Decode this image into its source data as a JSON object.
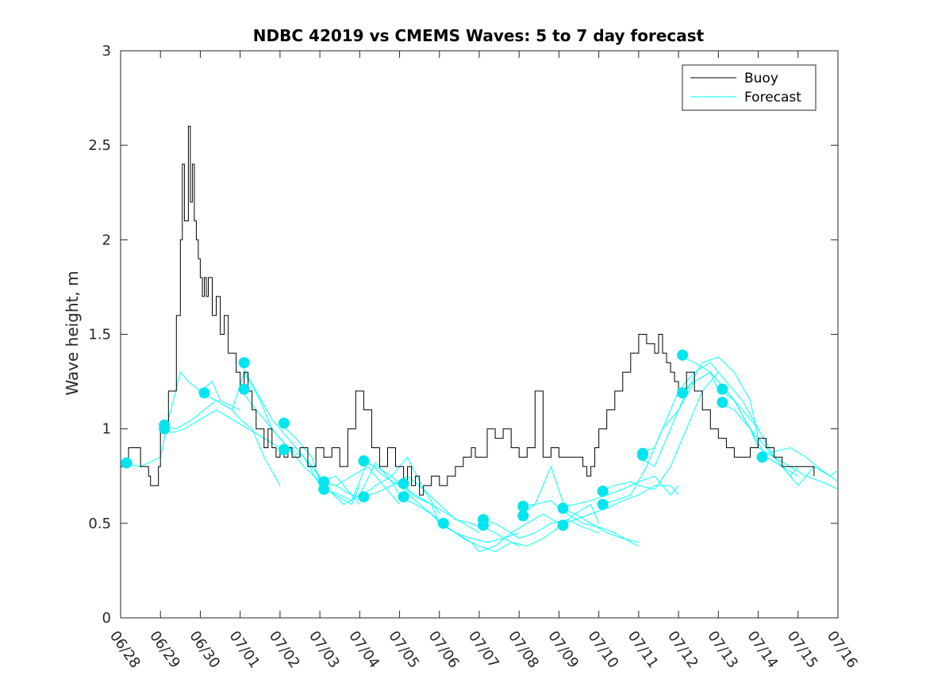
{
  "chart_data": {
    "type": "line",
    "title": "NDBC 42019 vs CMEMS Waves: 5 to 7 day forecast",
    "xlabel": "",
    "ylabel": "Wave height, m",
    "xlim": [
      0,
      18
    ],
    "ylim": [
      0,
      3
    ],
    "x_unit": "days since 06/28",
    "x_ticks": [
      0,
      1,
      2,
      3,
      4,
      5,
      6,
      7,
      8,
      9,
      10,
      11,
      12,
      13,
      14,
      15,
      16,
      17,
      18
    ],
    "x_tick_labels": [
      "06/28",
      "06/29",
      "06/30",
      "07/01",
      "07/02",
      "07/03",
      "07/04",
      "07/05",
      "07/06",
      "07/07",
      "07/08",
      "07/09",
      "07/10",
      "07/11",
      "07/12",
      "07/13",
      "07/14",
      "07/15",
      "07/16"
    ],
    "y_ticks": [
      0,
      0.5,
      1,
      1.5,
      2,
      2.5,
      3
    ],
    "y_tick_labels": [
      "0",
      "0.5",
      "1",
      "1.5",
      "2",
      "2.5",
      "3"
    ],
    "legend": {
      "position": "top-right",
      "entries": [
        "Buoy",
        "Forecast"
      ]
    },
    "colors": {
      "buoy": "#000000",
      "forecast": "#00ffff",
      "markers": "#00e5ee",
      "axes": "#262626"
    },
    "series": [
      {
        "name": "Buoy",
        "x": [
          0,
          0.2,
          0.5,
          0.7,
          0.75,
          0.95,
          1.0,
          1.2,
          1.4,
          1.5,
          1.55,
          1.6,
          1.7,
          1.75,
          1.8,
          1.85,
          1.9,
          1.95,
          2.0,
          2.05,
          2.1,
          2.15,
          2.2,
          2.3,
          2.4,
          2.5,
          2.6,
          2.7,
          2.8,
          2.9,
          3.0,
          3.1,
          3.2,
          3.3,
          3.4,
          3.5,
          3.6,
          3.7,
          3.8,
          3.9,
          4.0,
          4.1,
          4.2,
          4.3,
          4.5,
          4.7,
          4.9,
          5.1,
          5.3,
          5.5,
          5.7,
          5.9,
          6.1,
          6.3,
          6.5,
          6.7,
          6.9,
          7.1,
          7.2,
          7.3,
          7.4,
          7.5,
          7.6,
          7.8,
          8.0,
          8.2,
          8.4,
          8.6,
          8.8,
          8.9,
          9.0,
          9.2,
          9.4,
          9.6,
          9.8,
          10.0,
          10.2,
          10.4,
          10.6,
          10.8,
          11.0,
          11.3,
          11.6,
          11.7,
          11.8,
          11.9,
          12.0,
          12.2,
          12.4,
          12.6,
          12.8,
          13.0,
          13.2,
          13.4,
          13.5,
          13.6,
          13.7,
          13.8,
          13.9,
          14.0,
          14.2,
          14.4,
          14.6,
          14.8,
          15.0,
          15.2,
          15.4,
          15.6,
          15.8,
          16.0,
          16.2,
          16.4,
          16.6,
          16.8,
          17.0,
          17.2,
          17.4
        ],
        "y": [
          0.8,
          0.9,
          0.8,
          0.75,
          0.7,
          0.8,
          1.0,
          1.2,
          1.6,
          2.0,
          2.4,
          2.1,
          2.6,
          2.2,
          2.4,
          2.1,
          2.0,
          1.9,
          1.8,
          1.7,
          1.8,
          1.7,
          1.8,
          1.6,
          1.7,
          1.5,
          1.6,
          1.4,
          1.4,
          1.3,
          1.2,
          1.3,
          1.2,
          1.1,
          1.0,
          1.0,
          0.9,
          1.0,
          0.9,
          0.85,
          0.9,
          0.85,
          0.9,
          0.85,
          0.9,
          0.8,
          0.9,
          0.85,
          0.9,
          0.8,
          1.0,
          1.2,
          1.1,
          0.9,
          0.8,
          0.9,
          0.8,
          0.7,
          0.8,
          0.7,
          0.75,
          0.65,
          0.7,
          0.75,
          0.7,
          0.75,
          0.8,
          0.85,
          0.9,
          0.85,
          0.85,
          1.0,
          0.95,
          1.0,
          0.9,
          0.85,
          0.9,
          1.2,
          0.85,
          0.9,
          0.85,
          0.85,
          0.8,
          0.75,
          0.8,
          0.9,
          1.0,
          1.1,
          1.2,
          1.3,
          1.4,
          1.5,
          1.45,
          1.4,
          1.5,
          1.4,
          1.35,
          1.3,
          1.25,
          1.2,
          1.3,
          1.2,
          1.1,
          1.0,
          0.95,
          0.9,
          0.85,
          0.85,
          0.9,
          0.95,
          0.9,
          0.85,
          0.8,
          0.8,
          0.8,
          0.8,
          0.75
        ]
      },
      {
        "name": "Forecast",
        "runs": [
          {
            "x": [
              0,
              0.5,
              1.0,
              1.2,
              1.5,
              1.7,
              2.0,
              2.3,
              2.5,
              3.0
            ],
            "y": [
              0.82,
              0.8,
              0.85,
              1.05,
              1.3,
              1.25,
              1.2,
              1.25,
              1.15,
              1.1
            ]
          },
          {
            "x": [
              1.0,
              1.4,
              1.8,
              2.1,
              2.4,
              2.8,
              3.0,
              3.3,
              3.6,
              4.0
            ],
            "y": [
              1.02,
              1.0,
              1.05,
              1.1,
              1.15,
              1.1,
              1.05,
              1.0,
              0.85,
              0.7
            ]
          },
          {
            "x": [
              1.0,
              1.3,
              1.6,
              2.0,
              2.4,
              2.8,
              3.2,
              3.6,
              4.0
            ],
            "y": [
              1.0,
              0.98,
              1.0,
              1.05,
              1.1,
              1.05,
              1.0,
              0.95,
              0.9
            ]
          },
          {
            "x": [
              2.0,
              2.4,
              2.8,
              3.1,
              3.5,
              3.8,
              4.2,
              4.6,
              5.0
            ],
            "y": [
              1.19,
              1.15,
              1.1,
              1.3,
              1.15,
              1.0,
              0.9,
              0.85,
              0.75
            ]
          },
          {
            "x": [
              3.0,
              3.4,
              3.8,
              4.2,
              4.6,
              5.0,
              5.4,
              5.8,
              6.0
            ],
            "y": [
              1.35,
              1.2,
              1.05,
              0.95,
              0.85,
              0.7,
              0.65,
              0.6,
              0.7
            ]
          },
          {
            "x": [
              3.0,
              3.4,
              3.8,
              4.2,
              4.6,
              5.0,
              5.4,
              5.8,
              6.0
            ],
            "y": [
              1.21,
              1.1,
              1.0,
              0.9,
              0.8,
              0.72,
              0.75,
              0.65,
              0.6
            ]
          },
          {
            "x": [
              4.0,
              4.4,
              4.8,
              5.0,
              5.4,
              5.8,
              6.2,
              6.6,
              7.0
            ],
            "y": [
              1.03,
              0.95,
              0.85,
              0.72,
              0.7,
              0.75,
              0.8,
              0.7,
              0.6
            ]
          },
          {
            "x": [
              4.0,
              4.4,
              4.8,
              5.2,
              5.6,
              6.0,
              6.4,
              6.8,
              7.0
            ],
            "y": [
              0.89,
              0.9,
              0.8,
              0.68,
              0.6,
              0.65,
              0.82,
              0.72,
              0.65
            ]
          },
          {
            "x": [
              5.0,
              5.4,
              5.8,
              6.0,
              6.4,
              6.8,
              7.2,
              7.6,
              8.0
            ],
            "y": [
              0.72,
              0.7,
              0.65,
              0.64,
              0.7,
              0.75,
              0.85,
              0.68,
              0.55
            ]
          },
          {
            "x": [
              5.0,
              5.4,
              5.8,
              6.2,
              6.6,
              7.0,
              7.4,
              7.8,
              8.0
            ],
            "y": [
              0.68,
              0.66,
              0.62,
              0.83,
              0.75,
              0.7,
              0.62,
              0.55,
              0.5
            ]
          },
          {
            "x": [
              6.0,
              6.4,
              6.8,
              7.0,
              7.4,
              7.8,
              8.2,
              8.6,
              9.0
            ],
            "y": [
              0.83,
              0.8,
              0.75,
              0.71,
              0.64,
              0.6,
              0.55,
              0.5,
              0.45
            ]
          },
          {
            "x": [
              6.0,
              6.4,
              6.8,
              7.2,
              7.6,
              8.0,
              8.4,
              8.8,
              9.0
            ],
            "y": [
              0.64,
              0.66,
              0.7,
              0.75,
              0.68,
              0.6,
              0.52,
              0.5,
              0.48
            ]
          },
          {
            "x": [
              7.0,
              7.4,
              7.8,
              8.0,
              8.4,
              8.8,
              9.2,
              9.6,
              10.0
            ],
            "y": [
              0.71,
              0.65,
              0.6,
              0.5,
              0.45,
              0.42,
              0.4,
              0.42,
              0.45
            ]
          },
          {
            "x": [
              7.0,
              7.4,
              7.8,
              8.2,
              8.6,
              9.0,
              9.4,
              9.8,
              10.0
            ],
            "y": [
              0.64,
              0.6,
              0.55,
              0.48,
              0.42,
              0.38,
              0.35,
              0.4,
              0.38
            ]
          },
          {
            "x": [
              8.0,
              8.4,
              8.8,
              9.0,
              9.4,
              9.8,
              10.2,
              10.6,
              11.0
            ],
            "y": [
              0.5,
              0.45,
              0.4,
              0.35,
              0.38,
              0.45,
              0.5,
              0.55,
              0.5
            ]
          },
          {
            "x": [
              9.0,
              9.4,
              9.8,
              10.0,
              10.4,
              10.8,
              11.2,
              11.6,
              12.0
            ],
            "y": [
              0.52,
              0.5,
              0.45,
              0.42,
              0.45,
              0.5,
              0.52,
              0.48,
              0.45
            ]
          },
          {
            "x": [
              9.0,
              9.4,
              9.8,
              10.2,
              10.6,
              11.0,
              11.4,
              11.8,
              12.0
            ],
            "y": [
              0.49,
              0.45,
              0.4,
              0.38,
              0.42,
              0.48,
              0.55,
              0.6,
              0.5
            ]
          },
          {
            "x": [
              10.0,
              10.4,
              10.8,
              11.0,
              11.4,
              11.8,
              12.2,
              12.6,
              13.0
            ],
            "y": [
              0.59,
              0.6,
              0.62,
              0.58,
              0.55,
              0.5,
              0.45,
              0.42,
              0.4
            ]
          },
          {
            "x": [
              10.0,
              10.4,
              10.8,
              11.2,
              11.6,
              12.0,
              12.4,
              12.8,
              13.0
            ],
            "y": [
              0.54,
              0.6,
              0.8,
              0.55,
              0.5,
              0.48,
              0.45,
              0.4,
              0.38
            ]
          },
          {
            "x": [
              11.0,
              11.4,
              11.8,
              12.2,
              12.6,
              13.0,
              13.4,
              13.8,
              14.0
            ],
            "y": [
              0.58,
              0.6,
              0.62,
              0.65,
              0.68,
              0.72,
              0.75,
              0.65,
              0.7
            ]
          },
          {
            "x": [
              11.0,
              11.4,
              11.8,
              12.2,
              12.6,
              13.0,
              13.4,
              13.8,
              14.0
            ],
            "y": [
              0.49,
              0.52,
              0.55,
              0.58,
              0.62,
              0.65,
              0.7,
              0.7,
              0.65
            ]
          },
          {
            "x": [
              12.0,
              12.4,
              12.8,
              13.0,
              13.4,
              13.8,
              14.2,
              14.6,
              15.0
            ],
            "y": [
              0.67,
              0.7,
              0.72,
              0.7,
              0.68,
              0.8,
              1.0,
              1.2,
              1.3
            ]
          },
          {
            "x": [
              12.0,
              12.4,
              12.8,
              13.2,
              13.6,
              14.0,
              14.4,
              14.8,
              15.0
            ],
            "y": [
              0.6,
              0.62,
              0.65,
              0.8,
              1.0,
              1.1,
              1.25,
              1.3,
              1.2
            ]
          },
          {
            "x": [
              13.0,
              13.4,
              13.8,
              14.0,
              14.4,
              14.8,
              15.2,
              15.6,
              16.0
            ],
            "y": [
              0.87,
              0.9,
              1.1,
              1.2,
              1.3,
              1.35,
              1.25,
              1.15,
              1.0
            ]
          },
          {
            "x": [
              13.0,
              13.4,
              13.8,
              14.2,
              14.6,
              15.0,
              15.4,
              15.8,
              16.0
            ],
            "y": [
              0.85,
              0.8,
              1.0,
              1.2,
              1.35,
              1.38,
              1.3,
              1.15,
              0.95
            ]
          },
          {
            "x": [
              14.0,
              14.4,
              14.8,
              15.0,
              15.4,
              15.8,
              16.2,
              16.6,
              17.0
            ],
            "y": [
              1.39,
              1.35,
              1.3,
              1.25,
              1.15,
              1.0,
              0.9,
              0.8,
              0.75
            ]
          },
          {
            "x": [
              14.0,
              14.4,
              14.8,
              15.2,
              15.6,
              16.0,
              16.4,
              16.8,
              17.0
            ],
            "y": [
              1.19,
              1.25,
              1.3,
              1.2,
              1.1,
              1.0,
              0.85,
              0.75,
              0.8
            ]
          },
          {
            "x": [
              15.0,
              15.4,
              15.8,
              16.0,
              16.4,
              16.8,
              17.2,
              17.6,
              18.0
            ],
            "y": [
              1.21,
              1.15,
              1.0,
              0.9,
              0.85,
              0.8,
              0.75,
              0.72,
              0.68
            ]
          },
          {
            "x": [
              15.0,
              15.4,
              15.8,
              16.2,
              16.6,
              17.0,
              17.4,
              17.8,
              18.0
            ],
            "y": [
              1.14,
              1.1,
              1.0,
              0.85,
              0.8,
              0.7,
              0.8,
              0.75,
              0.78
            ]
          },
          {
            "x": [
              16.0,
              16.4,
              16.8,
              17.2,
              17.6,
              18.0
            ],
            "y": [
              0.85,
              0.88,
              0.9,
              0.85,
              0.78,
              0.72
            ]
          }
        ]
      }
    ],
    "markers": {
      "x": [
        0.15,
        1.1,
        1.1,
        2.1,
        3.1,
        3.1,
        4.1,
        4.1,
        5.1,
        5.1,
        6.1,
        6.1,
        7.1,
        7.1,
        8.1,
        9.1,
        9.1,
        10.1,
        10.1,
        11.1,
        11.1,
        12.1,
        12.1,
        13.1,
        13.1,
        14.1,
        14.1,
        15.1,
        15.1,
        16.1
      ],
      "y": [
        0.82,
        1.02,
        1.0,
        1.19,
        1.35,
        1.21,
        1.03,
        0.89,
        0.72,
        0.68,
        0.83,
        0.64,
        0.71,
        0.64,
        0.5,
        0.52,
        0.49,
        0.59,
        0.54,
        0.58,
        0.49,
        0.67,
        0.6,
        0.87,
        0.86,
        1.39,
        1.19,
        1.21,
        1.14,
        0.85
      ]
    }
  }
}
